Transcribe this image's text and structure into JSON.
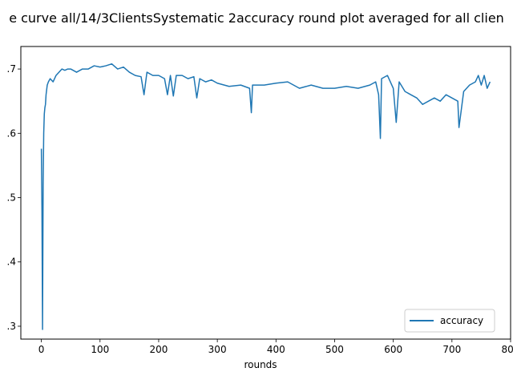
{
  "chart_data": {
    "type": "line",
    "title": "e curve all/14/3ClientsSystematic 2accuracy round plot averaged for all clien",
    "xlabel": "rounds",
    "ylabel": "",
    "xlim": [
      -35,
      800
    ],
    "ylim": [
      0.28,
      0.735
    ],
    "xticks": [
      0,
      100,
      200,
      300,
      400,
      500,
      600,
      700,
      800
    ],
    "yticks": [
      0.3,
      0.4,
      0.5,
      0.6,
      0.7
    ],
    "xtick_labels": [
      "0",
      "100",
      "200",
      "300",
      "400",
      "500",
      "600",
      "700",
      "800"
    ],
    "ytick_labels": [
      ".3",
      ".4",
      ".5",
      ".6",
      ".7"
    ],
    "grid": false,
    "legend_position": "lower-right",
    "colors": {
      "accuracy": "#1f77b4"
    },
    "series": [
      {
        "name": "accuracy",
        "x": [
          0,
          1,
          2,
          3,
          4,
          5,
          6,
          7,
          8,
          10,
          12,
          15,
          20,
          25,
          30,
          35,
          40,
          45,
          50,
          60,
          70,
          80,
          90,
          100,
          110,
          120,
          130,
          140,
          150,
          160,
          170,
          175,
          180,
          190,
          200,
          210,
          215,
          220,
          225,
          230,
          240,
          250,
          260,
          265,
          270,
          280,
          290,
          300,
          320,
          340,
          355,
          358,
          360,
          380,
          400,
          420,
          440,
          460,
          480,
          500,
          520,
          540,
          560,
          570,
          575,
          578,
          580,
          590,
          600,
          605,
          610,
          620,
          630,
          640,
          650,
          660,
          670,
          680,
          690,
          700,
          710,
          712,
          720,
          730,
          740,
          745,
          750,
          755,
          760,
          765
        ],
        "y": [
          0.576,
          0.48,
          0.295,
          0.52,
          0.6,
          0.63,
          0.64,
          0.645,
          0.66,
          0.675,
          0.68,
          0.685,
          0.68,
          0.69,
          0.695,
          0.7,
          0.698,
          0.7,
          0.7,
          0.695,
          0.7,
          0.7,
          0.705,
          0.703,
          0.705,
          0.708,
          0.7,
          0.703,
          0.695,
          0.69,
          0.688,
          0.66,
          0.695,
          0.69,
          0.69,
          0.685,
          0.66,
          0.69,
          0.658,
          0.69,
          0.69,
          0.685,
          0.688,
          0.655,
          0.685,
          0.68,
          0.683,
          0.678,
          0.673,
          0.675,
          0.67,
          0.632,
          0.675,
          0.675,
          0.678,
          0.68,
          0.67,
          0.675,
          0.67,
          0.67,
          0.673,
          0.67,
          0.675,
          0.68,
          0.66,
          0.592,
          0.685,
          0.69,
          0.67,
          0.617,
          0.68,
          0.665,
          0.66,
          0.655,
          0.645,
          0.65,
          0.655,
          0.65,
          0.66,
          0.655,
          0.65,
          0.609,
          0.665,
          0.675,
          0.68,
          0.69,
          0.675,
          0.69,
          0.67,
          0.68
        ]
      }
    ]
  }
}
